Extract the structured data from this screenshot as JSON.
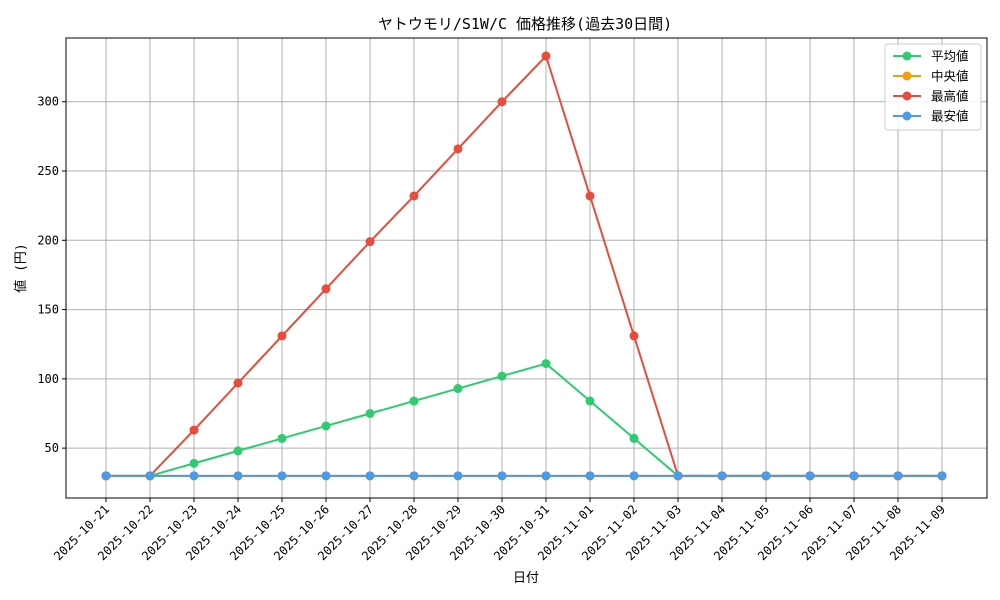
{
  "chart_data": {
    "type": "line",
    "title": "ヤトウモリ/S1W/C 価格推移(過去30日間)",
    "xlabel": "日付",
    "ylabel": "値 (円)",
    "ylim": [
      14,
      346
    ],
    "yticks": [
      50,
      100,
      150,
      200,
      250,
      300
    ],
    "grid": true,
    "legend_position": "top-right",
    "categories": [
      "2025-10-21",
      "2025-10-22",
      "2025-10-23",
      "2025-10-24",
      "2025-10-25",
      "2025-10-26",
      "2025-10-27",
      "2025-10-28",
      "2025-10-29",
      "2025-10-30",
      "2025-10-31",
      "2025-11-01",
      "2025-11-02",
      "2025-11-03",
      "2025-11-04",
      "2025-11-05",
      "2025-11-06",
      "2025-11-07",
      "2025-11-08",
      "2025-11-09"
    ],
    "series": [
      {
        "name": "平均値",
        "color": "#2ecc71",
        "values": [
          30,
          30,
          39,
          48,
          57,
          66,
          75,
          84,
          93,
          102,
          111,
          84,
          57,
          30,
          30,
          30,
          30,
          30,
          30,
          30
        ]
      },
      {
        "name": "中央値",
        "color": "#f39c12",
        "values": [
          30,
          30,
          30,
          30,
          30,
          30,
          30,
          30,
          30,
          30,
          30,
          30,
          30,
          30,
          30,
          30,
          30,
          30,
          30,
          30
        ]
      },
      {
        "name": "最高値",
        "color": "#e74c3c",
        "values": [
          30,
          30,
          63,
          97,
          131,
          165,
          199,
          232,
          266,
          300,
          333,
          232,
          131,
          30,
          30,
          30,
          30,
          30,
          30,
          30
        ]
      },
      {
        "name": "最安値",
        "color": "#4c9be8",
        "values": [
          30,
          30,
          30,
          30,
          30,
          30,
          30,
          30,
          30,
          30,
          30,
          30,
          30,
          30,
          30,
          30,
          30,
          30,
          30,
          30
        ]
      }
    ]
  }
}
